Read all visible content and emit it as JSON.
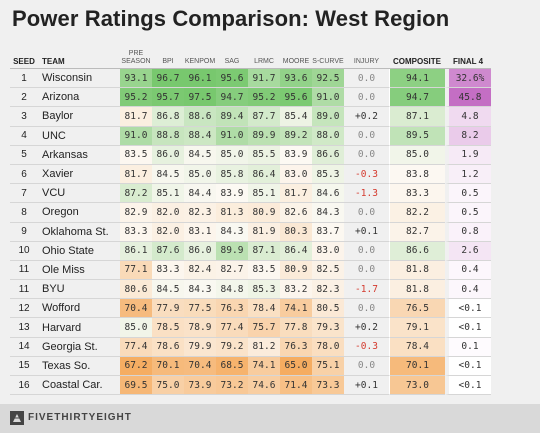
{
  "title": "Power Ratings Comparison: West Region",
  "footer_logo": "FIVETHIRTYEIGHT",
  "headers": {
    "seed": "SEED",
    "team": "TEAM",
    "preseason": "PRE SEASON",
    "bpi": "BPI",
    "kenpom": "KENPOM",
    "sag": "SAG",
    "lrmc": "LRMC",
    "moore": "MOORE",
    "scurve": "S-CURVE",
    "injury": "INJURY",
    "composite": "COMPOSITE",
    "final4": "FINAL 4"
  },
  "chart_data": {
    "type": "table",
    "title": "Power Ratings Comparison: West Region",
    "columns": [
      "SEED",
      "TEAM",
      "PRE SEASON",
      "BPI",
      "KENPOM",
      "SAG",
      "LRMC",
      "MOORE",
      "S-CURVE",
      "INJURY",
      "COMPOSITE",
      "FINAL 4"
    ],
    "rows": [
      {
        "seed": "1",
        "team": "Wisconsin",
        "ratings": [
          "93.1",
          "96.7",
          "96.1",
          "95.6",
          "91.7",
          "93.6",
          "92.5"
        ],
        "injury": "0.0",
        "composite": "94.1",
        "final4": "32.6%"
      },
      {
        "seed": "2",
        "team": "Arizona",
        "ratings": [
          "95.2",
          "95.7",
          "97.5",
          "94.7",
          "95.2",
          "95.6",
          "91.0"
        ],
        "injury": "0.0",
        "composite": "94.7",
        "final4": "45.8"
      },
      {
        "seed": "3",
        "team": "Baylor",
        "ratings": [
          "81.7",
          "86.8",
          "88.6",
          "89.4",
          "87.7",
          "85.4",
          "89.0"
        ],
        "injury": "+0.2",
        "composite": "87.1",
        "final4": "4.8"
      },
      {
        "seed": "4",
        "team": "UNC",
        "ratings": [
          "91.0",
          "88.8",
          "88.4",
          "91.0",
          "89.9",
          "89.2",
          "88.0"
        ],
        "injury": "0.0",
        "composite": "89.5",
        "final4": "8.2"
      },
      {
        "seed": "5",
        "team": "Arkansas",
        "ratings": [
          "83.5",
          "86.0",
          "84.5",
          "85.0",
          "85.5",
          "83.9",
          "86.6"
        ],
        "injury": "0.0",
        "composite": "85.0",
        "final4": "1.9"
      },
      {
        "seed": "6",
        "team": "Xavier",
        "ratings": [
          "81.7",
          "84.5",
          "85.0",
          "85.8",
          "86.4",
          "83.0",
          "85.3"
        ],
        "injury": "-0.3",
        "composite": "83.8",
        "final4": "1.2"
      },
      {
        "seed": "7",
        "team": "VCU",
        "ratings": [
          "87.2",
          "85.1",
          "84.4",
          "83.9",
          "85.1",
          "81.7",
          "84.6"
        ],
        "injury": "-1.3",
        "composite": "83.3",
        "final4": "0.5"
      },
      {
        "seed": "8",
        "team": "Oregon",
        "ratings": [
          "82.9",
          "82.0",
          "82.3",
          "81.3",
          "80.9",
          "82.6",
          "84.3"
        ],
        "injury": "0.0",
        "composite": "82.2",
        "final4": "0.5"
      },
      {
        "seed": "9",
        "team": "Oklahoma St.",
        "ratings": [
          "83.3",
          "82.0",
          "83.1",
          "84.3",
          "81.9",
          "80.3",
          "83.7"
        ],
        "injury": "+0.1",
        "composite": "82.7",
        "final4": "0.8"
      },
      {
        "seed": "10",
        "team": "Ohio State",
        "ratings": [
          "86.1",
          "87.6",
          "86.0",
          "89.9",
          "87.1",
          "86.4",
          "83.0"
        ],
        "injury": "0.0",
        "composite": "86.6",
        "final4": "2.6"
      },
      {
        "seed": "11",
        "team": "Ole Miss",
        "ratings": [
          "77.1",
          "83.3",
          "82.4",
          "82.7",
          "83.5",
          "80.9",
          "82.5"
        ],
        "injury": "0.0",
        "composite": "81.8",
        "final4": "0.4"
      },
      {
        "seed": "11",
        "team": "BYU",
        "ratings": [
          "80.6",
          "84.5",
          "84.3",
          "84.8",
          "85.3",
          "83.2",
          "82.3"
        ],
        "injury": "-1.7",
        "composite": "81.8",
        "final4": "0.4"
      },
      {
        "seed": "12",
        "team": "Wofford",
        "ratings": [
          "70.4",
          "77.9",
          "77.5",
          "76.3",
          "78.4",
          "74.1",
          "80.5"
        ],
        "injury": "0.0",
        "composite": "76.5",
        "final4": "<0.1"
      },
      {
        "seed": "13",
        "team": "Harvard",
        "ratings": [
          "85.0",
          "78.5",
          "78.9",
          "77.4",
          "75.7",
          "77.8",
          "79.3"
        ],
        "injury": "+0.2",
        "composite": "79.1",
        "final4": "<0.1"
      },
      {
        "seed": "14",
        "team": "Georgia St.",
        "ratings": [
          "77.4",
          "78.6",
          "79.9",
          "79.2",
          "81.2",
          "76.3",
          "78.0"
        ],
        "injury": "-0.3",
        "composite": "78.4",
        "final4": "0.1"
      },
      {
        "seed": "15",
        "team": "Texas So.",
        "ratings": [
          "67.2",
          "70.1",
          "70.4",
          "68.5",
          "74.1",
          "65.0",
          "75.1"
        ],
        "injury": "0.0",
        "composite": "70.1",
        "final4": "<0.1"
      },
      {
        "seed": "16",
        "team": "Coastal Car.",
        "ratings": [
          "69.5",
          "75.0",
          "73.9",
          "73.2",
          "74.6",
          "71.4",
          "73.3"
        ],
        "injury": "+0.1",
        "composite": "73.0",
        "final4": "<0.1"
      }
    ]
  }
}
